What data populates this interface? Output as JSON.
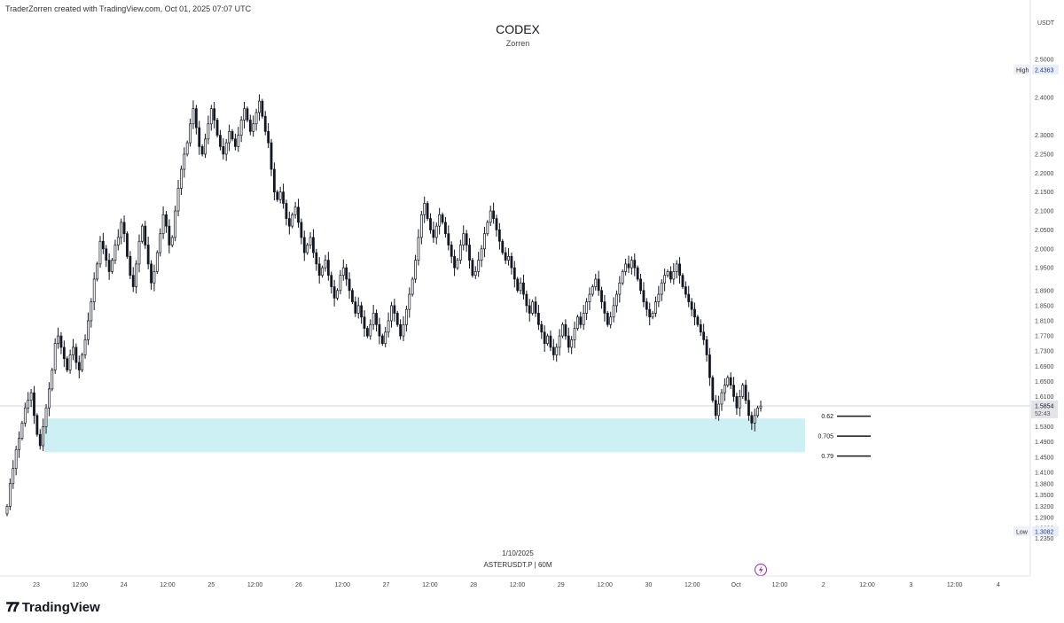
{
  "header": {
    "credit": "TraderZorren created with TradingView.com, Oct 01, 2025 07:07 UTC",
    "title": "CODEX",
    "subtitle": "Zorren"
  },
  "footer": {
    "brand": "TradingView",
    "date_label": "1/10/2025",
    "symbol_label": "ASTERUSDT.P  |  60M"
  },
  "colors": {
    "zone": "#ccf0f4",
    "candle_up": "#ffffff",
    "candle_down": "#131722",
    "wick": "#131722",
    "price_line": "#d1d4dc",
    "axis_text": "#444444",
    "lightning": "#9c27b0"
  },
  "chart_data": {
    "type": "candlestick",
    "y_axis_title": "USDT",
    "ylim": [
      1.225,
      2.54
    ],
    "ytick_labels": [
      "2.5000",
      "2.4000",
      "2.3000",
      "2.2500",
      "2.2000",
      "2.1500",
      "2.1000",
      "2.0500",
      "2.0000",
      "1.9500",
      "1.8900",
      "1.8500",
      "1.8100",
      "1.7700",
      "1.7300",
      "1.6900",
      "1.6500",
      "1.6100",
      "1.5700",
      "1.5300",
      "1.4900",
      "1.4500",
      "1.4100",
      "1.3800",
      "1.3500",
      "1.3200",
      "1.2900",
      "1.2620",
      "1.2350"
    ],
    "xtick_labels": [
      "23",
      "12:00",
      "24",
      "12:00",
      "25",
      "12:00",
      "26",
      "12:00",
      "27",
      "12:00",
      "28",
      "12:00",
      "29",
      "12:00",
      "30",
      "12:00",
      "Oct",
      "12:00",
      "2",
      "12:00",
      "3",
      "12:00",
      "4"
    ],
    "high_label": "High",
    "high_value": "2.4363",
    "low_label": "Low",
    "low_value": "1.3082",
    "last_price": "1.5854",
    "countdown": "52:43",
    "zone": {
      "top": 1.552,
      "bottom": 1.463
    },
    "fib_levels": [
      {
        "label": "0.62",
        "value": 1.5582
      },
      {
        "label": "0.705",
        "value": 1.5055
      },
      {
        "label": "0.79",
        "value": 1.4528
      }
    ],
    "closes": [
      1.32,
      1.38,
      1.42,
      1.47,
      1.5,
      1.54,
      1.58,
      1.6,
      1.62,
      1.56,
      1.51,
      1.48,
      1.53,
      1.58,
      1.63,
      1.68,
      1.75,
      1.77,
      1.74,
      1.71,
      1.68,
      1.72,
      1.74,
      1.7,
      1.68,
      1.72,
      1.76,
      1.81,
      1.86,
      1.92,
      1.96,
      2.02,
      2.0,
      1.97,
      1.94,
      1.97,
      2.01,
      2.03,
      2.07,
      2.04,
      1.98,
      1.93,
      1.9,
      1.96,
      2.02,
      2.06,
      2.01,
      1.96,
      1.91,
      1.94,
      1.99,
      2.04,
      2.09,
      2.06,
      2.01,
      2.03,
      2.1,
      2.16,
      2.21,
      2.25,
      2.28,
      2.33,
      2.37,
      2.32,
      2.27,
      2.25,
      2.29,
      2.33,
      2.37,
      2.34,
      2.3,
      2.27,
      2.25,
      2.28,
      2.31,
      2.29,
      2.27,
      2.3,
      2.34,
      2.37,
      2.34,
      2.31,
      2.33,
      2.36,
      2.39,
      2.35,
      2.31,
      2.28,
      2.21,
      2.15,
      2.13,
      2.15,
      2.12,
      2.08,
      2.06,
      2.09,
      2.11,
      2.07,
      2.03,
      1.99,
      2.01,
      2.03,
      1.99,
      1.96,
      1.93,
      1.95,
      1.97,
      1.93,
      1.9,
      1.87,
      1.89,
      1.93,
      1.95,
      1.92,
      1.89,
      1.86,
      1.83,
      1.85,
      1.82,
      1.79,
      1.77,
      1.8,
      1.83,
      1.8,
      1.77,
      1.75,
      1.78,
      1.81,
      1.85,
      1.83,
      1.8,
      1.77,
      1.8,
      1.84,
      1.88,
      1.92,
      1.97,
      2.03,
      2.09,
      2.12,
      2.08,
      2.05,
      2.03,
      2.06,
      2.09,
      2.07,
      2.04,
      2.01,
      1.98,
      1.95,
      1.97,
      2.01,
      2.04,
      2.01,
      1.97,
      1.93,
      1.94,
      1.97,
      2.0,
      2.04,
      2.07,
      2.1,
      2.08,
      2.05,
      2.02,
      1.99,
      1.97,
      1.98,
      1.95,
      1.92,
      1.89,
      1.91,
      1.88,
      1.85,
      1.83,
      1.86,
      1.83,
      1.8,
      1.78,
      1.75,
      1.77,
      1.74,
      1.72,
      1.74,
      1.77,
      1.8,
      1.77,
      1.74,
      1.76,
      1.79,
      1.82,
      1.8,
      1.83,
      1.86,
      1.88,
      1.9,
      1.92,
      1.89,
      1.86,
      1.83,
      1.8,
      1.82,
      1.85,
      1.88,
      1.91,
      1.94,
      1.96,
      1.95,
      1.97,
      1.95,
      1.92,
      1.89,
      1.86,
      1.84,
      1.82,
      1.83,
      1.86,
      1.88,
      1.91,
      1.93,
      1.94,
      1.92,
      1.94,
      1.96,
      1.93,
      1.9,
      1.88,
      1.86,
      1.84,
      1.82,
      1.8,
      1.78,
      1.76,
      1.72,
      1.66,
      1.6,
      1.56,
      1.59,
      1.62,
      1.64,
      1.66,
      1.64,
      1.61,
      1.58,
      1.61,
      1.64,
      1.6,
      1.56,
      1.54,
      1.56,
      1.58,
      1.585
    ]
  }
}
